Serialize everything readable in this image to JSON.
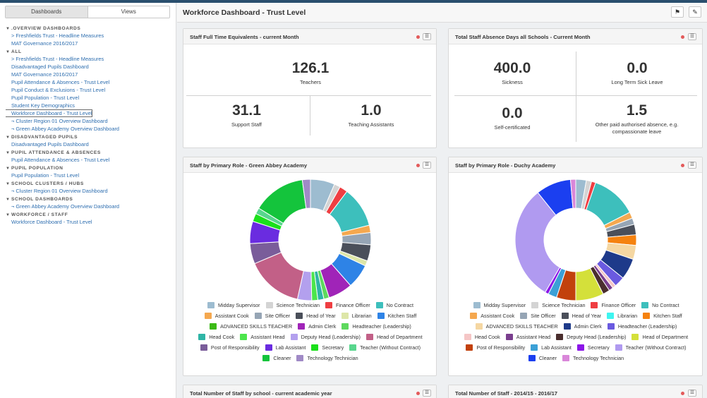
{
  "sidebar": {
    "tabs": [
      "Dashboards",
      "Views"
    ],
    "nav": [
      {
        "type": "section",
        "label": ".OVERVIEW DASHBOARDS"
      },
      {
        "type": "link",
        "label": "> Freshfields Trust - Headline Measures"
      },
      {
        "type": "link",
        "label": "MAT Governance 2016/2017"
      },
      {
        "type": "section",
        "label": "ALL"
      },
      {
        "type": "link",
        "label": "> Freshfields Trust - Headline Measures"
      },
      {
        "type": "link",
        "label": "Disadvantaged Pupils Dashboard"
      },
      {
        "type": "link",
        "label": "MAT Governance 2016/2017"
      },
      {
        "type": "link",
        "label": "Pupil Attendance & Absences - Trust Level"
      },
      {
        "type": "link",
        "label": "Pupil Conduct & Exclusions - Trust Level"
      },
      {
        "type": "link",
        "label": "Pupil Population - Trust Level"
      },
      {
        "type": "link",
        "label": "Student Key Demographics"
      },
      {
        "type": "link",
        "label": "Workforce Dashboard - Trust Level",
        "selected": true
      },
      {
        "type": "link",
        "label": "¬ Cluster Region 01 Overview Dashboard"
      },
      {
        "type": "link",
        "label": "¬ Green Abbey Academy Overview Dashboard"
      },
      {
        "type": "section",
        "label": "DISADVANTAGED PUPILS"
      },
      {
        "type": "link",
        "label": "Disadvantaged Pupils Dashboard"
      },
      {
        "type": "section",
        "label": "PUPIL ATTENDANCE & ABSENCES"
      },
      {
        "type": "link",
        "label": "Pupil Attendance & Absences - Trust Level"
      },
      {
        "type": "section",
        "label": "PUPIL POPULATION"
      },
      {
        "type": "link",
        "label": "Pupil Population - Trust Level"
      },
      {
        "type": "section",
        "label": "SCHOOL CLUSTERS / HUBS"
      },
      {
        "type": "link",
        "label": "¬ Cluster Region 01 Overview Dashboard"
      },
      {
        "type": "section",
        "label": "SCHOOL DASHBOARDS"
      },
      {
        "type": "link",
        "label": "¬ Green Abbey Academy Overview Dashboard"
      },
      {
        "type": "section",
        "label": "WORKFORCE / STAFF"
      },
      {
        "type": "link",
        "label": "Workforce Dashboard - Trust Level"
      }
    ]
  },
  "header": {
    "title": "Workforce Dashboard - Trust Level",
    "bookmark_icon": "bookmark-icon",
    "edit_icon": "pencil-icon"
  },
  "panels": {
    "fte": {
      "title": "Staff Full Time Equivalents - current Month",
      "teachers": {
        "value": "126.1",
        "label": "Teachers"
      },
      "support": {
        "value": "31.1",
        "label": "Support Staff"
      },
      "ta": {
        "value": "1.0",
        "label": "Teaching Assistants"
      }
    },
    "absence": {
      "title": "Total Staff Absence Days all Schools - Current Month",
      "sickness": {
        "value": "400.0",
        "label": "Sickness"
      },
      "longterm": {
        "value": "0.0",
        "label": "Long Term Sick Leave"
      },
      "selfcert": {
        "value": "0.0",
        "label": "Self-certificated"
      },
      "other": {
        "value": "1.5",
        "label": "Other paid authorised absence, e.g. compassionate leave"
      }
    },
    "green_abbey": {
      "title": "Staff by Primary Role - Green Abbey Academy"
    },
    "duchy": {
      "title": "Staff by Primary Role - Duchy Academy"
    },
    "by_school": {
      "title": "Total Number of Staff by school - current academic year"
    },
    "by_year": {
      "title": "Total Number of Staff - 2014/15 - 2016/17"
    }
  },
  "colors": {
    "status_dot": "#e35a5a",
    "link": "#2f6fb0"
  },
  "chart_data": [
    {
      "type": "pie",
      "title": "Staff by Primary Role - Green Abbey Academy",
      "donut": true,
      "slices": [
        {
          "label": "Midday Supervisor",
          "value": 6,
          "color": "#9dbcd0"
        },
        {
          "label": "Science Technician",
          "value": 1.5,
          "color": "#d4d4d4"
        },
        {
          "label": "Finance Officer",
          "value": 2,
          "color": "#ef3e42"
        },
        {
          "label": "No Contract",
          "value": 10,
          "color": "#3dbfbc"
        },
        {
          "label": "Assistant Cook",
          "value": 1.8,
          "color": "#f5a84f"
        },
        {
          "label": "Site Officer",
          "value": 3,
          "color": "#96a5b5"
        },
        {
          "label": "Head of Year",
          "value": 4,
          "color": "#4a4f5a"
        },
        {
          "label": "Librarian",
          "value": 1.3,
          "color": "#dde6a8"
        },
        {
          "label": "Kitchen Staff",
          "value": 6,
          "color": "#2e83e6"
        },
        {
          "label": "Admin Clerk",
          "value": 6,
          "color": "#a024b8"
        },
        {
          "label": "Headteacher (Leadership)",
          "value": 1.3,
          "color": "#5ed95e"
        },
        {
          "label": "Head Cook",
          "value": 1.5,
          "color": "#2fb5a6"
        },
        {
          "label": "Assistant Head",
          "value": 1.5,
          "color": "#4ce54c"
        },
        {
          "label": "Deputy Head (Leadership)",
          "value": 3.5,
          "color": "#b3a0ee"
        },
        {
          "label": "Head of Department",
          "value": 14,
          "color": "#c26087"
        },
        {
          "label": "Post of Responsibility",
          "value": 5,
          "color": "#7a5d9a"
        },
        {
          "label": "Lab Assistant",
          "value": 5.5,
          "color": "#6a2ce0"
        },
        {
          "label": "Secretary",
          "value": 2,
          "color": "#1be01b"
        },
        {
          "label": "Teacher (Without Contract)",
          "value": 1.5,
          "color": "#58d68d"
        },
        {
          "label": "Cleaner",
          "value": 13,
          "color": "#14c43c"
        },
        {
          "label": "Technology Technician",
          "value": 2,
          "color": "#a08ac6"
        }
      ]
    },
    {
      "type": "pie",
      "title": "Staff by Primary Role - Duchy Academy",
      "donut": true,
      "slices": [
        {
          "label": "Midday Supervisor",
          "value": 3,
          "color": "#9dbcd0"
        },
        {
          "label": "Science Technician",
          "value": 1.5,
          "color": "#d4d4d4"
        },
        {
          "label": "Finance Officer",
          "value": 1.2,
          "color": "#ef3e42"
        },
        {
          "label": "No Contract",
          "value": 13,
          "color": "#3dbfbc"
        },
        {
          "label": "Assistant Cook",
          "value": 1.8,
          "color": "#f5a84f"
        },
        {
          "label": "Site Officer",
          "value": 1.8,
          "color": "#96a5b5"
        },
        {
          "label": "Head of Year",
          "value": 3,
          "color": "#4a4f5a"
        },
        {
          "label": "Kitchen Staff",
          "value": 3,
          "color": "#f5820f"
        },
        {
          "label": "ADVANCED SKILLS TEACHER",
          "value": 4,
          "color": "#f5d7a2"
        },
        {
          "label": "Admin Clerk",
          "value": 6,
          "color": "#1e3a8a"
        },
        {
          "label": "Headteacher (Leadership)",
          "value": 3,
          "color": "#6a5ae0"
        },
        {
          "label": "Head Cook",
          "value": 1,
          "color": "#f5c6c6"
        },
        {
          "label": "Assistant Head",
          "value": 1.2,
          "color": "#7a3e8e"
        },
        {
          "label": "Deputy Head (Leadership)",
          "value": 2,
          "color": "#4a2e2e"
        },
        {
          "label": "Head of Department",
          "value": 8,
          "color": "#d4e03a"
        },
        {
          "label": "Post of Responsibility",
          "value": 5.5,
          "color": "#c2410c"
        },
        {
          "label": "Lab Assistant",
          "value": 2.5,
          "color": "#3ba0d6"
        },
        {
          "label": "Secretary",
          "value": 1,
          "color": "#8b16e8"
        },
        {
          "label": "Teacher (Without Contract)",
          "value": 33,
          "color": "#b09af0"
        },
        {
          "label": "Cleaner",
          "value": 10,
          "color": "#1b3ff0"
        },
        {
          "label": "Technology Technician",
          "value": 1.5,
          "color": "#d987d9"
        }
      ]
    }
  ],
  "legends": {
    "green_abbey": [
      [
        {
          "label": "Midday Supervisor",
          "color": "#9dbcd0"
        },
        {
          "label": "Science Technician",
          "color": "#d4d4d4"
        },
        {
          "label": "Finance Officer",
          "color": "#ef3e42"
        },
        {
          "label": "No Contract",
          "color": "#3dbfbc"
        }
      ],
      [
        {
          "label": "Assistant Cook",
          "color": "#f5a84f"
        },
        {
          "label": "Site Officer",
          "color": "#96a5b5"
        },
        {
          "label": "Head of Year",
          "color": "#4a4f5a"
        },
        {
          "label": "Librarian",
          "color": "#dde6a8"
        },
        {
          "label": "Kitchen Staff",
          "color": "#2e83e6"
        }
      ],
      [
        {
          "label": "ADVANCED SKILLS TEACHER",
          "color": "#3cba16"
        },
        {
          "label": "Admin Clerk",
          "color": "#a024b8"
        },
        {
          "label": "Headteacher (Leadership)",
          "color": "#5ed95e"
        }
      ],
      [
        {
          "label": "Head Cook",
          "color": "#2fb5a6"
        },
        {
          "label": "Assistant Head",
          "color": "#4ce54c"
        },
        {
          "label": "Deputy Head (Leadership)",
          "color": "#b3a0ee"
        },
        {
          "label": "Head of Department",
          "color": "#c26087"
        }
      ],
      [
        {
          "label": "Post of Responsibility",
          "color": "#7a5d9a"
        },
        {
          "label": "Lab Assistant",
          "color": "#6a2ce0"
        },
        {
          "label": "Secretary",
          "color": "#1be01b"
        },
        {
          "label": "Teacher (Without Contract)",
          "color": "#58d68d"
        }
      ],
      [
        {
          "label": "Cleaner",
          "color": "#14c43c"
        },
        {
          "label": "Technology Technician",
          "color": "#a08ac6"
        }
      ]
    ],
    "duchy": [
      [
        {
          "label": "Midday Supervisor",
          "color": "#9dbcd0"
        },
        {
          "label": "Science Technician",
          "color": "#d4d4d4"
        },
        {
          "label": "Finance Officer",
          "color": "#ef3e42"
        },
        {
          "label": "No Contract",
          "color": "#3dbfbc"
        }
      ],
      [
        {
          "label": "Assistant Cook",
          "color": "#f5a84f"
        },
        {
          "label": "Site Officer",
          "color": "#96a5b5"
        },
        {
          "label": "Head of Year",
          "color": "#4a4f5a"
        },
        {
          "label": "Librarian",
          "color": "#3ef5f0"
        },
        {
          "label": "Kitchen Staff",
          "color": "#f5820f"
        }
      ],
      [
        {
          "label": "ADVANCED SKILLS TEACHER",
          "color": "#f5d7a2"
        },
        {
          "label": "Admin Clerk",
          "color": "#1e3a8a"
        },
        {
          "label": "Headteacher (Leadership)",
          "color": "#6a5ae0"
        }
      ],
      [
        {
          "label": "Head Cook",
          "color": "#f5c6c6"
        },
        {
          "label": "Assistant Head",
          "color": "#7a3e8e"
        },
        {
          "label": "Deputy Head (Leadership)",
          "color": "#4a2e2e"
        },
        {
          "label": "Head of Department",
          "color": "#d4e03a"
        }
      ],
      [
        {
          "label": "Post of Responsibility",
          "color": "#c2410c"
        },
        {
          "label": "Lab Assistant",
          "color": "#3ba0d6"
        },
        {
          "label": "Secretary",
          "color": "#8b16e8"
        },
        {
          "label": "Teacher (Without Contract)",
          "color": "#b09af0"
        }
      ],
      [
        {
          "label": "Cleaner",
          "color": "#1b3ff0"
        },
        {
          "label": "Technology Technician",
          "color": "#d987d9"
        }
      ]
    ]
  }
}
